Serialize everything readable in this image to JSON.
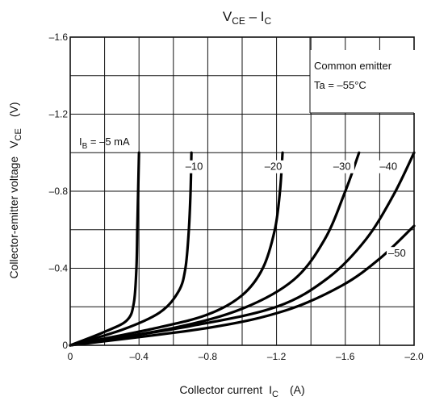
{
  "chart_data": {
    "type": "line",
    "title_main": "V",
    "title_main_sub": "CE",
    "title_sep": " – I",
    "title_sep_sub": "C",
    "xlabel": "Collector current",
    "xlabel_symbol": "I",
    "xlabel_symbol_sub": "C",
    "xlabel_unit": "(A)",
    "ylabel": "Collector-emitter voltage",
    "ylabel_symbol": "V",
    "ylabel_symbol_sub": "CE",
    "ylabel_unit": "(V)",
    "xlim": [
      0,
      -2.0
    ],
    "ylim": [
      0,
      -1.6
    ],
    "grid": true,
    "x_ticks": [
      "0",
      "–0.4",
      "–0.8",
      "–1.2",
      "–1.6",
      "–2.0"
    ],
    "x_tick_values": [
      0,
      -0.4,
      -0.8,
      -1.2,
      -1.6,
      -2.0
    ],
    "y_ticks": [
      "0",
      "–0.4",
      "–0.8",
      "–1.2",
      "–1.6"
    ],
    "y_tick_values": [
      0,
      -0.4,
      -0.8,
      -1.2,
      -1.6
    ],
    "legend_box": {
      "line1": "Common emitter",
      "line2": "Ta = –55°C"
    },
    "ib_label_prefix": "I",
    "ib_label_sub": "B",
    "ib_label_rest": " = –5 mA",
    "series": [
      {
        "label": "–5",
        "x": [
          0,
          -0.2,
          -0.33,
          -0.37,
          -0.385,
          -0.39,
          -0.395,
          -0.4
        ],
        "y": [
          0,
          -0.07,
          -0.13,
          -0.22,
          -0.4,
          -0.6,
          -0.8,
          -1.0
        ]
      },
      {
        "label": "–10",
        "x": [
          0,
          -0.3,
          -0.52,
          -0.63,
          -0.67,
          -0.69,
          -0.7,
          -0.705
        ],
        "y": [
          0,
          -0.08,
          -0.17,
          -0.28,
          -0.4,
          -0.6,
          -0.8,
          -1.0
        ]
      },
      {
        "label": "–20",
        "x": [
          0,
          -0.5,
          -0.8,
          -1.0,
          -1.12,
          -1.19,
          -1.22,
          -1.235
        ],
        "y": [
          0,
          -0.09,
          -0.16,
          -0.26,
          -0.4,
          -0.6,
          -0.8,
          -1.0
        ]
      },
      {
        "label": "–30",
        "x": [
          0,
          -0.6,
          -1.0,
          -1.3,
          -1.48,
          -1.6,
          -1.68
        ],
        "y": [
          0,
          -0.09,
          -0.19,
          -0.34,
          -0.55,
          -0.8,
          -1.0
        ]
      },
      {
        "label": "–40",
        "x": [
          0,
          -0.7,
          -1.2,
          -1.5,
          -1.72,
          -1.88,
          -2.0
        ],
        "y": [
          0,
          -0.1,
          -0.2,
          -0.35,
          -0.55,
          -0.78,
          -1.0
        ]
      },
      {
        "label": "–50",
        "x": [
          0,
          -0.8,
          -1.25,
          -1.58,
          -1.8,
          -2.0
        ],
        "y": [
          0,
          -0.09,
          -0.18,
          -0.31,
          -0.45,
          -0.62
        ]
      }
    ]
  }
}
